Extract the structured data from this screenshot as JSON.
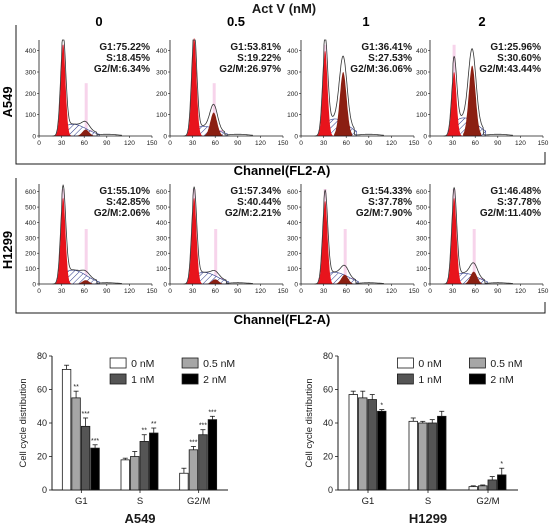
{
  "top": {
    "title": "Act V (nM)",
    "conditions": [
      "0",
      "0.5",
      "1",
      "2"
    ],
    "channel_label": "Channel(FL2-A)",
    "x_ticks": [
      "0",
      "30",
      "60",
      "90",
      "120",
      "150"
    ],
    "rows": [
      {
        "cell_line": "A549",
        "y_ticks": [
          "0",
          "100",
          "200",
          "300",
          "400"
        ],
        "ymax": 450,
        "panels": [
          {
            "g1": "G1:75.22%",
            "s": "S:18.45%",
            "g2m": "G2/M:6.34%"
          },
          {
            "g1": "G1:53.81%",
            "s": "S:19.22%",
            "g2m": "G2/M:26.97%"
          },
          {
            "g1": "G1:36.41%",
            "s": "S:27.53%",
            "g2m": "G2/M:36.06%"
          },
          {
            "g1": "G1:25.96%",
            "s": "S:30.60%",
            "g2m": "G2/M:43.44%"
          }
        ]
      },
      {
        "cell_line": "H1299",
        "y_ticks": [
          "0",
          "100",
          "200",
          "300",
          "400",
          "500",
          "600"
        ],
        "ymax": 650,
        "panels": [
          {
            "g1": "G1:55.10%",
            "s": "S:42.85%",
            "g2m": "G2/M:2.06%"
          },
          {
            "g1": "G1:57.34%",
            "s": "S:40.44%",
            "g2m": "G2/M:2.21%"
          },
          {
            "g1": "G1:54.33%",
            "s": "S:37.78%",
            "g2m": "G2/M:7.90%"
          },
          {
            "g1": "G1:46.48%",
            "s": "S:37.78%",
            "g2m": "G2/M:11.40%"
          }
        ]
      }
    ]
  },
  "colors": {
    "g1": "#e8141c",
    "g2m": "#8b1f12",
    "s_hatch": "#2d3a8c",
    "pink": "#f2b8dd",
    "text": "#1a1a1a",
    "g2m_text": "#1a1a1a"
  },
  "chart_data": [
    {
      "type": "bar",
      "title": "A549",
      "ylabel": "Cell cycle distribution",
      "xlabel": "",
      "ylim": [
        0,
        80
      ],
      "y_ticks": [
        "0",
        "20",
        "40",
        "60",
        "80"
      ],
      "categories": [
        "G1",
        "S",
        "G2/M"
      ],
      "legend": [
        "0 nM",
        "0.5 nM",
        "1 nM",
        "2 nM"
      ],
      "legend_position": "top-right",
      "fill_colors": [
        "#ffffff",
        "#a6a6a6",
        "#555555",
        "#000000"
      ],
      "series": [
        {
          "name": "0 nM",
          "values": [
            72,
            18,
            10
          ],
          "errors": [
            2.5,
            1,
            3
          ]
        },
        {
          "name": "0.5 nM",
          "values": [
            55,
            20,
            24
          ],
          "errors": [
            4,
            3,
            2
          ]
        },
        {
          "name": "1 nM",
          "values": [
            38,
            29,
            33
          ],
          "errors": [
            5,
            4,
            3
          ]
        },
        {
          "name": "2 nM",
          "values": [
            25,
            34,
            42
          ],
          "errors": [
            2,
            3,
            2
          ]
        }
      ],
      "significance": [
        [
          "",
          "",
          ""
        ],
        [
          "**",
          "",
          "***"
        ],
        [
          "***",
          "**",
          "***"
        ],
        [
          "***",
          "**",
          "***"
        ]
      ]
    },
    {
      "type": "bar",
      "title": "H1299",
      "ylabel": "Cell cycle distribution",
      "xlabel": "",
      "ylim": [
        0,
        80
      ],
      "y_ticks": [
        "0",
        "20",
        "40",
        "60",
        "80"
      ],
      "categories": [
        "G1",
        "S",
        "G2/M"
      ],
      "legend": [
        "0 nM",
        "0.5 nM",
        "1 nM",
        "2 nM"
      ],
      "legend_position": "top-right",
      "fill_colors": [
        "#ffffff",
        "#a6a6a6",
        "#555555",
        "#000000"
      ],
      "series": [
        {
          "name": "0 nM",
          "values": [
            57,
            41,
            2
          ],
          "errors": [
            2,
            2,
            0.5
          ]
        },
        {
          "name": "0.5 nM",
          "values": [
            55,
            40,
            2.5
          ],
          "errors": [
            4,
            1,
            0.5
          ]
        },
        {
          "name": "1 nM",
          "values": [
            54,
            40,
            6
          ],
          "errors": [
            3,
            2,
            2
          ]
        },
        {
          "name": "2 nM",
          "values": [
            47,
            44,
            9
          ],
          "errors": [
            1,
            3,
            4
          ]
        }
      ],
      "significance": [
        [
          "",
          "",
          ""
        ],
        [
          "",
          "",
          ""
        ],
        [
          "",
          "",
          ""
        ],
        [
          "*",
          "",
          "*"
        ]
      ]
    }
  ]
}
